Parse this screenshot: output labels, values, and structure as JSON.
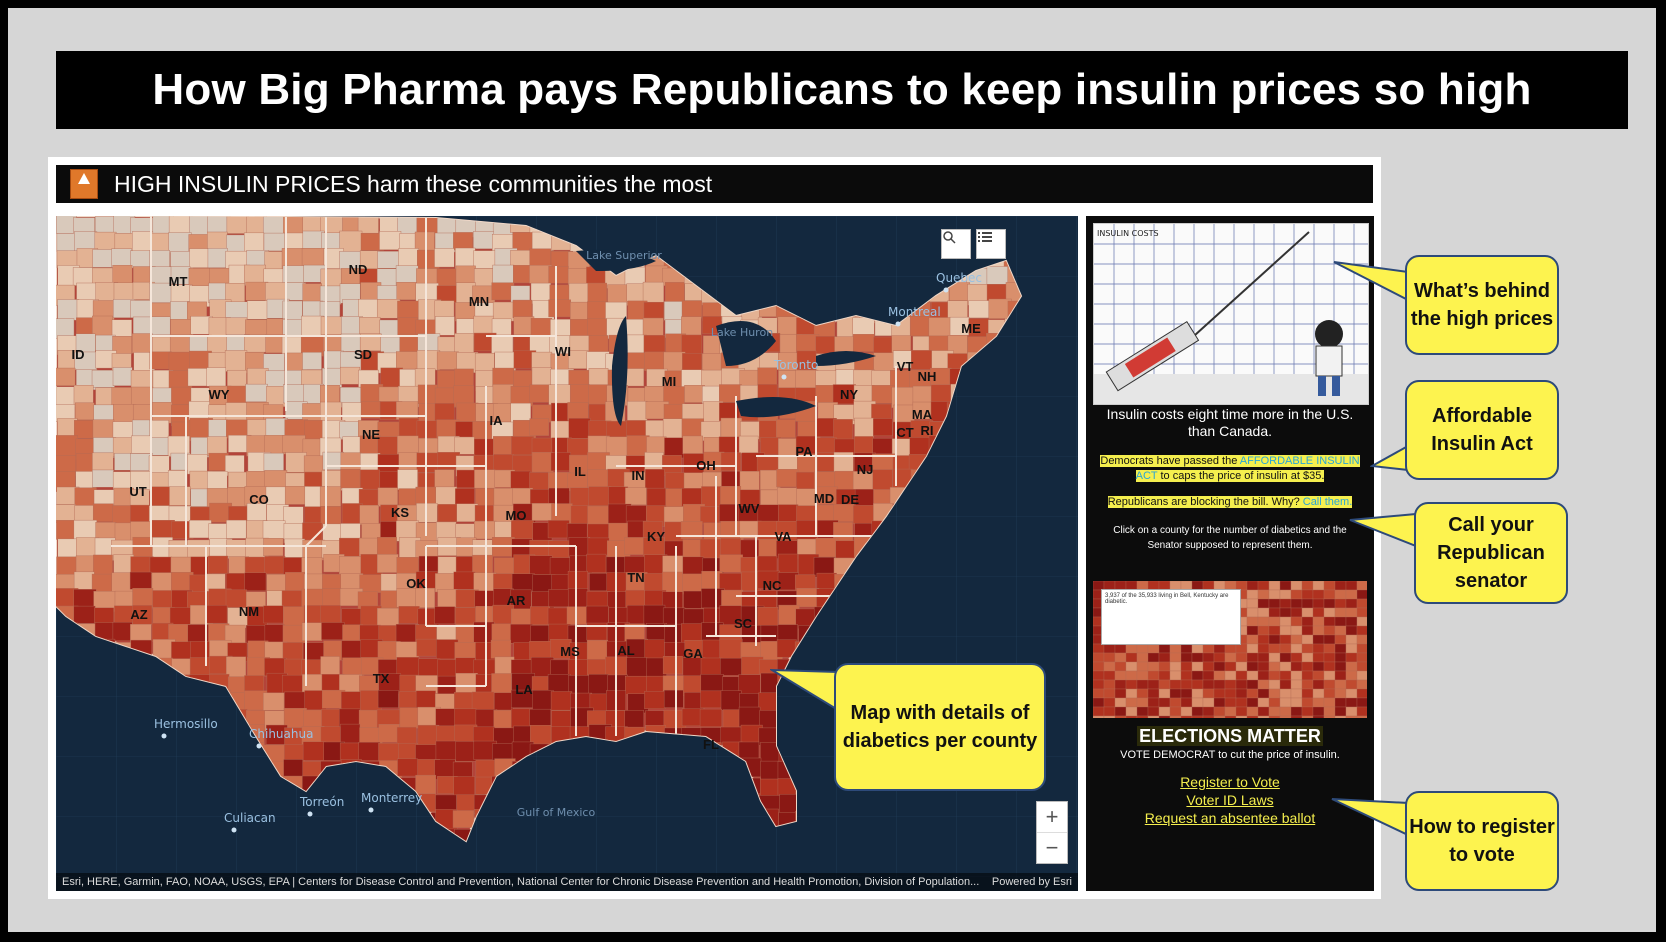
{
  "banner": {
    "title": "How Big Pharma pays Republicans to keep insulin prices so high"
  },
  "app": {
    "title": "HIGH INSULIN PRICES harm these communities the most",
    "map": {
      "search_label": "Search",
      "legend_label": "Legend",
      "zoom_in": "+",
      "zoom_out": "−",
      "attribution": "Esri, HERE, Garmin, FAO, NOAA, USGS, EPA | Centers for Disease Control and Prevention, National Center for Chronic Disease Prevention and Health Promotion, Division of Population...",
      "powered_by": "Powered by Esri",
      "state_labels": [
        "MT",
        "ND",
        "MN",
        "SD",
        "ID",
        "WY",
        "NE",
        "WI",
        "MI",
        "IA",
        "UT",
        "CO",
        "KS",
        "IL",
        "IN",
        "OH",
        "PA",
        "NY",
        "VT",
        "NH",
        "ME",
        "MA",
        "CT",
        "RI",
        "NJ",
        "MD",
        "DE",
        "WV",
        "VA",
        "KY",
        "MO",
        "OK",
        "AR",
        "TN",
        "NC",
        "SC",
        "GA",
        "AL",
        "MS",
        "LA",
        "TX",
        "NM",
        "AZ",
        "FL"
      ],
      "city_labels": [
        "Quebec",
        "Montreal",
        "Toronto",
        "Hermosillo",
        "Chihuahua",
        "Torreón",
        "Monterrey",
        "Culiacan"
      ],
      "water_labels": [
        "Lake Superior",
        "Lake Huron",
        "Gulf of Mexico"
      ]
    },
    "sidebar": {
      "cartoon_caption": "INSULIN COSTS",
      "cartoon_figure": "AMERICA",
      "cost_text": "Insulin costs eight time more in the U.S. than Canada.",
      "democrats_text_1": "Democrats have passed the ",
      "democrats_link": "AFFORDABLE INSULIN ACT",
      "democrats_text_2": " to caps the price of insulin at $35.",
      "republicans_text": "Republicans are blocking the bill. Why? ",
      "call_link": "Call them.",
      "click_text": "Click on a county for the number of diabetics and the Senator supposed to represent them.",
      "popup_text": "3,937 of the 35,933 living in Bell, Kentucky are diabetic.",
      "elections_title": "ELECTIONS MATTER",
      "vote_text": "VOTE DEMOCRAT to cut the price of insulin.",
      "links": [
        "Register to Vote",
        "Voter ID Laws",
        "Request an absentee ballot"
      ]
    }
  },
  "callouts": {
    "behind": "What’s behind the high prices",
    "act": "Affordable Insulin Act",
    "call": "Call your Republican senator",
    "map": "Map with details of diabetics per county",
    "register": "How to register to vote"
  },
  "colors": {
    "callout_fill": "#fdf34f",
    "callout_border": "#2d4a7a",
    "map_dark": "#8e1b17",
    "map_light": "#e9c9ad",
    "water": "#12283f"
  }
}
